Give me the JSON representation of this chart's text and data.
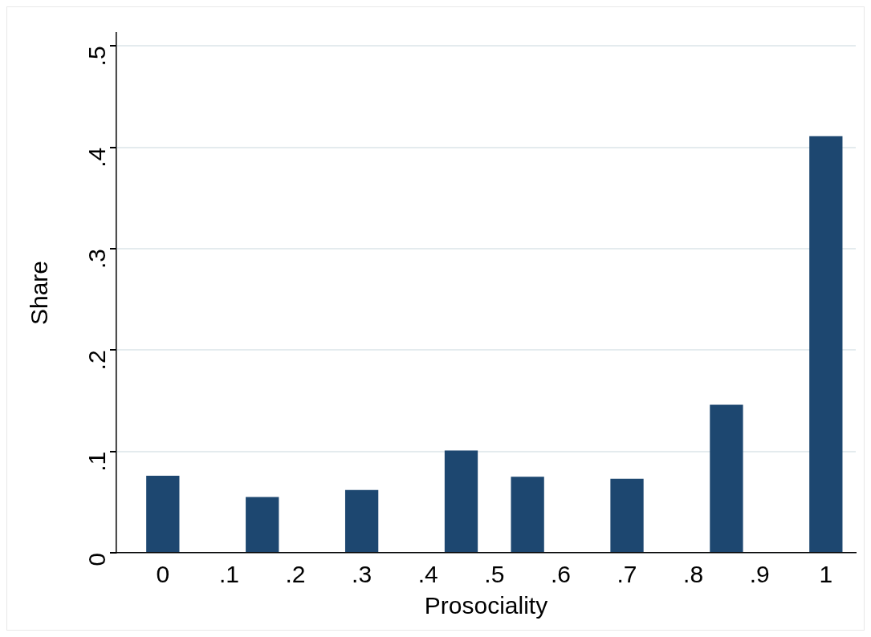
{
  "chart_data": {
    "type": "bar",
    "xlabel": "Prosociality",
    "ylabel": "Share",
    "x": [
      0,
      0.15,
      0.3,
      0.45,
      0.55,
      0.7,
      0.85,
      1
    ],
    "values": [
      0.076,
      0.055,
      0.062,
      0.101,
      0.075,
      0.073,
      0.146,
      0.411
    ],
    "color": "#1d4770",
    "xlim": [
      -0.07,
      1.045
    ],
    "ylim": [
      0,
      0.513
    ],
    "xticks": [
      0,
      {
        "value": 0.1,
        "label": ".1"
      },
      {
        "value": 0.2,
        "label": ".2"
      },
      {
        "value": 0.3,
        "label": ".3"
      },
      {
        "value": 0.4,
        "label": ".4"
      },
      {
        "value": 0.5,
        "label": ".5"
      },
      {
        "value": 0.6,
        "label": ".6"
      },
      {
        "value": 0.7,
        "label": ".7"
      },
      {
        "value": 0.8,
        "label": ".8"
      },
      {
        "value": 0.9,
        "label": ".9"
      },
      1
    ],
    "yticks": [
      0,
      {
        "value": 0.1,
        "label": ".1"
      },
      {
        "value": 0.2,
        "label": ".2"
      },
      {
        "value": 0.3,
        "label": ".3"
      },
      {
        "value": 0.4,
        "label": ".4"
      },
      {
        "value": 0.5,
        "label": ".5"
      }
    ],
    "grid": "y",
    "legend": false
  }
}
